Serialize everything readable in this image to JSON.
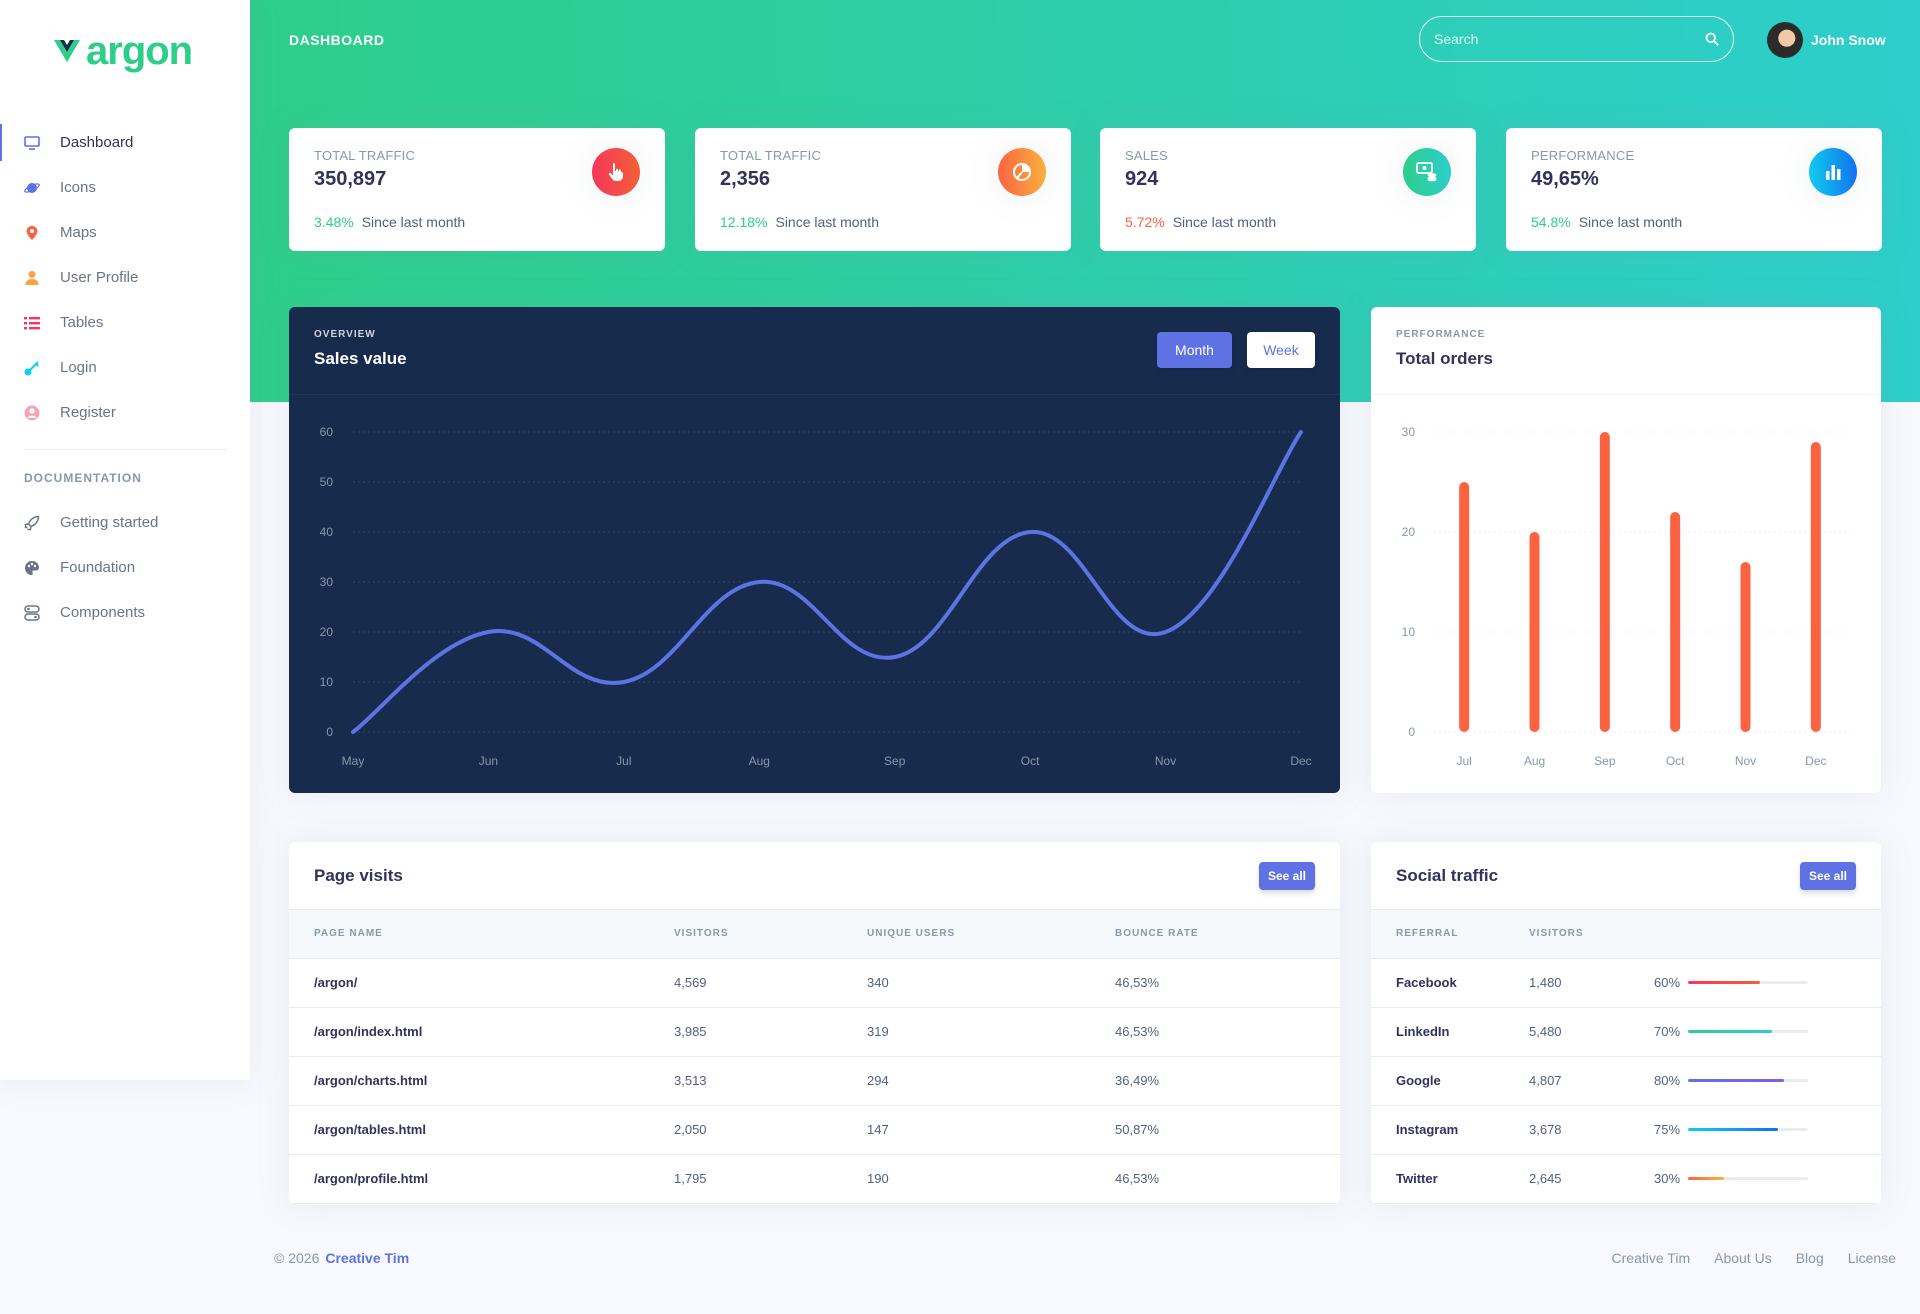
{
  "brand": {
    "logo_text": "argon"
  },
  "sidebar": {
    "items": [
      {
        "label": "Dashboard",
        "icon": "tv-icon",
        "active": true,
        "color": "#5e72e4"
      },
      {
        "label": "Icons",
        "icon": "planet-icon",
        "active": false,
        "color": "#5e72e4"
      },
      {
        "label": "Maps",
        "icon": "pin-icon",
        "active": false,
        "color": "#fb6340"
      },
      {
        "label": "User Profile",
        "icon": "user-icon",
        "active": false,
        "color": "#fb9f40"
      },
      {
        "label": "Tables",
        "icon": "list-icon",
        "active": false,
        "color": "#f5365c"
      },
      {
        "label": "Login",
        "icon": "key-icon",
        "active": false,
        "color": "#11cdef"
      },
      {
        "label": "Register",
        "icon": "circle-user-icon",
        "active": false,
        "color": "#f3a4b5"
      }
    ],
    "doc_heading": "DOCUMENTATION",
    "doc_items": [
      {
        "label": "Getting started",
        "icon": "spaceship-icon"
      },
      {
        "label": "Foundation",
        "icon": "palette-icon"
      },
      {
        "label": "Components",
        "icon": "ui-components-icon"
      }
    ]
  },
  "header": {
    "title": "DASHBOARD",
    "search_placeholder": "Search",
    "user_name": "John Snow"
  },
  "stats": [
    {
      "title": "Total traffic",
      "value": "350,897",
      "pct": "3.48%",
      "pct_color": "#2dce89",
      "since": "Since last month",
      "icon": "hand-pointer-icon",
      "icon_bg": "linear-gradient(87deg,#f5365c,#f56036)"
    },
    {
      "title": "Total traffic",
      "value": "2,356",
      "pct": "12.18%",
      "pct_color": "#2dce89",
      "since": "Since last month",
      "icon": "pie-chart-icon",
      "icon_bg": "linear-gradient(87deg,#fb6340,#fbb140)"
    },
    {
      "title": "Sales",
      "value": "924",
      "pct": "5.72%",
      "pct_color": "#fb6340",
      "since": "Since last month",
      "icon": "money-coins-icon",
      "icon_bg": "linear-gradient(87deg,#2dce89,#2dcecc)"
    },
    {
      "title": "Performance",
      "value": "49,65%",
      "pct": "54.8%",
      "pct_color": "#2dce89",
      "since": "Since last month",
      "icon": "bar-chart-icon",
      "icon_bg": "linear-gradient(87deg,#11cdef,#1171ef)"
    }
  ],
  "sales_card": {
    "overline": "Overview",
    "title": "Sales value",
    "btn_month": "Month",
    "btn_week": "Week"
  },
  "orders_card": {
    "overline": "Performance",
    "title": "Total orders"
  },
  "chart_data": [
    {
      "type": "line",
      "categories": [
        "May",
        "Jun",
        "Jul",
        "Aug",
        "Sep",
        "Oct",
        "Nov",
        "Dec"
      ],
      "values": [
        0,
        20,
        10,
        30,
        15,
        40,
        20,
        60
      ],
      "ylim": [
        0,
        60
      ],
      "yticks": [
        0,
        10,
        20,
        30,
        40,
        50,
        60
      ],
      "grid": true,
      "color": "#5e72e4"
    },
    {
      "type": "bar",
      "categories": [
        "Jul",
        "Aug",
        "Sep",
        "Oct",
        "Nov",
        "Dec"
      ],
      "values": [
        25,
        20,
        30,
        22,
        17,
        29
      ],
      "ylim": [
        0,
        30
      ],
      "yticks": [
        0,
        10,
        20,
        30
      ],
      "grid": true,
      "color": "#fb6340"
    }
  ],
  "page_visits": {
    "title": "Page visits",
    "see_all": "See all",
    "columns": [
      "Page name",
      "Visitors",
      "Unique users",
      "Bounce rate"
    ],
    "rows": [
      [
        "/argon/",
        "4,569",
        "340",
        "46,53%"
      ],
      [
        "/argon/index.html",
        "3,985",
        "319",
        "46,53%"
      ],
      [
        "/argon/charts.html",
        "3,513",
        "294",
        "36,49%"
      ],
      [
        "/argon/tables.html",
        "2,050",
        "147",
        "50,87%"
      ],
      [
        "/argon/profile.html",
        "1,795",
        "190",
        "46,53%"
      ]
    ]
  },
  "social_traffic": {
    "title": "Social traffic",
    "see_all": "See all",
    "columns": [
      "Referral",
      "Visitors",
      ""
    ],
    "rows": [
      {
        "name": "Facebook",
        "visitors": "1,480",
        "pct": "60%",
        "value": 60,
        "gradient": "linear-gradient(87deg,#f5365c,#f56036)"
      },
      {
        "name": "LinkedIn",
        "visitors": "5,480",
        "pct": "70%",
        "value": 70,
        "gradient": "linear-gradient(87deg,#2dce89,#2dcecc)"
      },
      {
        "name": "Google",
        "visitors": "4,807",
        "pct": "80%",
        "value": 80,
        "gradient": "linear-gradient(87deg,#5e72e4,#825ee4)"
      },
      {
        "name": "Instagram",
        "visitors": "3,678",
        "pct": "75%",
        "value": 75,
        "gradient": "linear-gradient(87deg,#11cdef,#1171ef)"
      },
      {
        "name": "Twitter",
        "visitors": "2,645",
        "pct": "30%",
        "value": 30,
        "gradient": "linear-gradient(87deg,#fb6340,#fbb140)"
      }
    ]
  },
  "footer": {
    "copyright": "© 2026",
    "brand": "Creative Tim",
    "links": [
      "Creative Tim",
      "About Us",
      "Blog",
      "License"
    ]
  }
}
